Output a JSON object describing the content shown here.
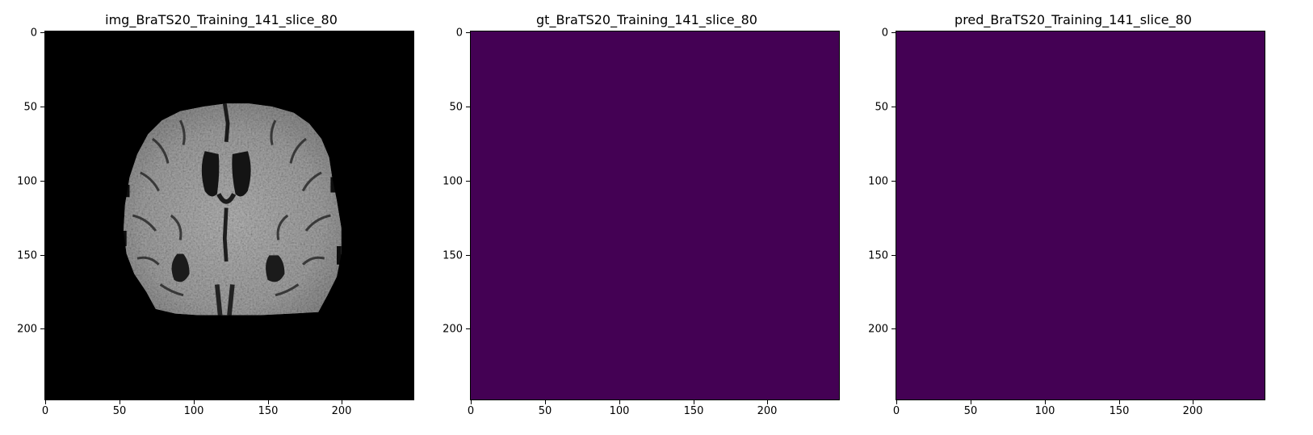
{
  "figure": {
    "panels": [
      {
        "id": "img",
        "title": "img_BraTS20_Training_141_slice_80",
        "content": "mri-brain-slice",
        "background_color": "#000000"
      },
      {
        "id": "gt",
        "title": "gt_BraTS20_Training_141_slice_80",
        "content": "segmentation-mask",
        "fill_color": "#440154"
      },
      {
        "id": "pred",
        "title": "pred_BraTS20_Training_141_slice_80",
        "content": "segmentation-mask",
        "fill_color": "#440154"
      }
    ],
    "axis": {
      "x_range": [
        0,
        240
      ],
      "y_range": [
        0,
        240
      ],
      "x_ticks": [
        "0",
        "50",
        "100",
        "150",
        "200"
      ],
      "y_ticks": [
        "0",
        "50",
        "100",
        "150",
        "200"
      ]
    }
  }
}
